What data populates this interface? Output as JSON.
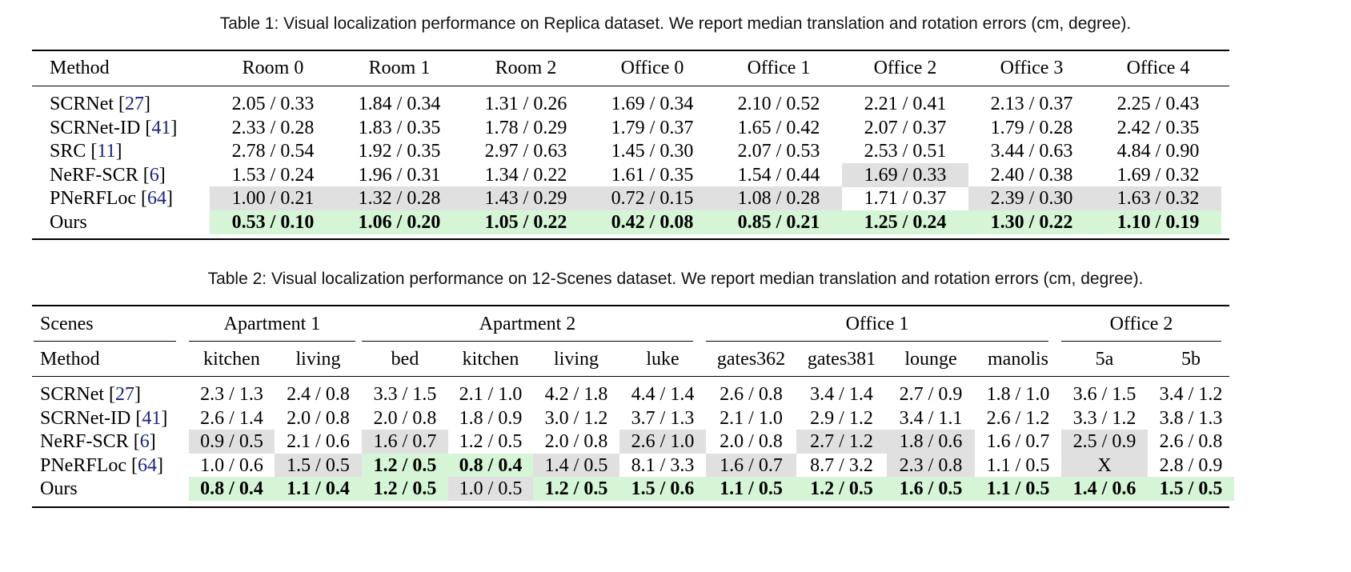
{
  "table1": {
    "caption": "Table 1: Visual localization performance on Replica dataset. We report median translation and rotation errors (cm, degree).",
    "header": [
      "Method",
      "Room 0",
      "Room 1",
      "Room 2",
      "Office 0",
      "Office 1",
      "Office 2",
      "Office 3",
      "Office 4"
    ],
    "rows": [
      [
        "SCRNet [27]",
        "2.05 / 0.33",
        "1.84 / 0.34",
        "1.31 / 0.26",
        "1.69 / 0.34",
        "2.10 / 0.52",
        "2.21 / 0.41",
        "2.13 / 0.37",
        "2.25 / 0.43"
      ],
      [
        "SCRNet-ID [41]",
        "2.33 / 0.28",
        "1.83 / 0.35",
        "1.78 / 0.29",
        "1.79 / 0.37",
        "1.65 / 0.42",
        "2.07 / 0.37",
        "1.79 / 0.28",
        "2.42 / 0.35"
      ],
      [
        "SRC [11]",
        "2.78 / 0.54",
        "1.92 / 0.35",
        "2.97 / 0.63",
        "1.45 / 0.30",
        "2.07 / 0.53",
        "2.53 / 0.51",
        "3.44 / 0.63",
        "4.84 / 0.90"
      ],
      [
        "NeRF-SCR [6]",
        "1.53 / 0.24",
        "1.96 / 0.31",
        "1.34 / 0.22",
        "1.61 / 0.35",
        "1.54 / 0.44",
        "1.69 / 0.33",
        "2.40 / 0.38",
        "1.69 / 0.32"
      ],
      [
        "PNeRFLoc [64]",
        "1.00 / 0.21",
        "1.32 / 0.28",
        "1.43 / 0.29",
        "0.72 / 0.15",
        "1.08 / 0.28",
        "1.71 / 0.37",
        "2.39 / 0.30",
        "1.63 / 0.32"
      ],
      [
        "Ours",
        "0.53 / 0.10",
        "1.06 / 0.20",
        "1.05 / 0.22",
        "0.42 / 0.08",
        "0.85 / 0.21",
        "1.25 / 0.24",
        "1.30 / 0.22",
        "1.10 / 0.19"
      ]
    ]
  },
  "table2": {
    "caption": "Table 2: Visual localization performance on 12-Scenes dataset. We report median translation and rotation errors (cm, degree).",
    "group_header": [
      "Scenes",
      "Apartment 1",
      "Apartment 2",
      "Office 1",
      "Office 2"
    ],
    "header": [
      "Method",
      "kitchen",
      "living",
      "bed",
      "kitchen",
      "living",
      "luke",
      "gates362",
      "gates381",
      "lounge",
      "manolis",
      "5a",
      "5b"
    ],
    "rows": [
      [
        "SCRNet [27]",
        "2.3 / 1.3",
        "2.4 / 0.8",
        "3.3 / 1.5",
        "2.1 / 1.0",
        "4.2 / 1.8",
        "4.4 / 1.4",
        "2.6 / 0.8",
        "3.4 / 1.4",
        "2.7 / 0.9",
        "1.8 / 1.0",
        "3.6 / 1.5",
        "3.4 / 1.2"
      ],
      [
        "SCRNet-ID [41]",
        "2.6 / 1.4",
        "2.0 / 0.8",
        "2.0 / 0.8",
        "1.8 / 0.9",
        "3.0 / 1.2",
        "3.7 / 1.3",
        "2.1 / 1.0",
        "2.9 / 1.2",
        "3.4 / 1.1",
        "2.6 / 1.2",
        "3.3 / 1.2",
        "3.8 / 1.3"
      ],
      [
        "NeRF-SCR [6]",
        "0.9 / 0.5",
        "2.1 / 0.6",
        "1.6 / 0.7",
        "1.2 / 0.5",
        "2.0 / 0.8",
        "2.6 / 1.0",
        "2.0 / 0.8",
        "2.7 / 1.2",
        "1.8 / 0.6",
        "1.6 / 0.7",
        "2.5 / 0.9",
        "2.6 / 0.8"
      ],
      [
        "PNeRFLoc [64]",
        "1.0 / 0.6",
        "1.5 / 0.5",
        "1.2 / 0.5",
        "0.8 / 0.4",
        "1.4 / 0.5",
        "8.1 / 3.3",
        "1.6 / 0.7",
        "8.7 / 3.2",
        "2.3 / 0.8",
        "1.1 / 0.5",
        "X",
        "2.8 / 0.9"
      ],
      [
        "Ours",
        "0.8 / 0.4",
        "1.1 / 0.4",
        "1.2 / 0.5",
        "1.0 / 0.5",
        "1.2 / 0.5",
        "1.5 / 0.6",
        "1.1 / 0.5",
        "1.2 / 0.5",
        "1.6 / 0.5",
        "1.1 / 0.5",
        "1.4 / 0.6",
        "1.5 / 0.5"
      ]
    ]
  }
}
